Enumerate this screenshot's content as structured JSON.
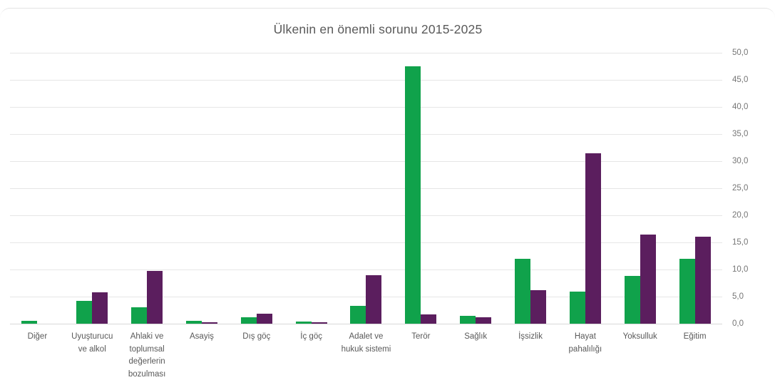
{
  "page": {
    "background_color": "#ffffff",
    "card_top_border_color": "#e4e4e4"
  },
  "chart_data": {
    "type": "bar",
    "title": "Ülkenin en önemli sorunu 2015-2025",
    "xlabel": "",
    "ylabel": "",
    "categories": [
      "Diğer",
      "Uyuşturucu ve alkol",
      "Ahlaki ve toplumsal değerlerin bozulması",
      "Asayiş",
      "Dış göç",
      "İç göç",
      "Adalet ve hukuk sistemi",
      "Terör",
      "Sağlık",
      "İşsizlik",
      "Hayat pahalılığı",
      "Yoksulluk",
      "Eğitim"
    ],
    "series": [
      {
        "name": "green-series",
        "color": "#10a24b",
        "values": [
          0.5,
          4.2,
          3.0,
          0.5,
          1.2,
          0.4,
          3.3,
          47.5,
          1.5,
          12.0,
          5.9,
          8.8,
          12.0
        ]
      },
      {
        "name": "purple-series",
        "color": "#5b1e5e",
        "values": [
          0.0,
          5.8,
          9.7,
          0.2,
          1.8,
          0.2,
          9.0,
          1.7,
          1.2,
          6.2,
          31.4,
          16.4,
          16.0
        ]
      }
    ],
    "ylim": [
      0,
      50
    ],
    "ytick_step": 5,
    "ytick_labels": [
      "0,0",
      "5,0",
      "10,0",
      "15,0",
      "20,0",
      "25,0",
      "30,0",
      "35,0",
      "40,0",
      "45,0",
      "50,0"
    ],
    "yaxis_side": "right",
    "grid": true,
    "legend": "none",
    "title_color": "#595959",
    "tick_label_color": "#757575",
    "category_label_color": "#595959",
    "gridline_color": "#e6e6e6",
    "baseline_color": "#d9d9d9"
  }
}
